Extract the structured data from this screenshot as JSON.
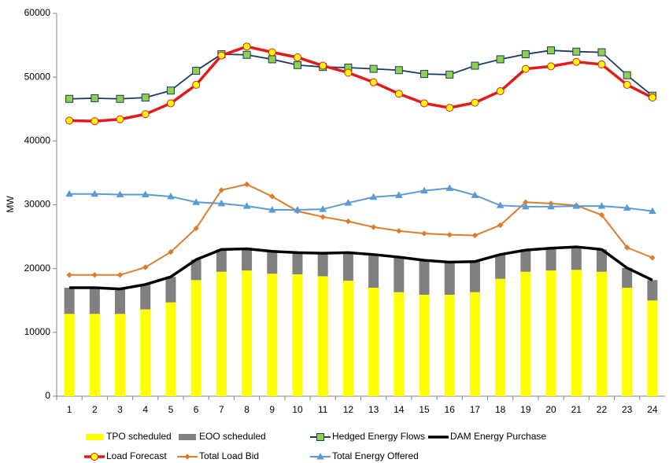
{
  "chart_data": {
    "type": "bar",
    "y_label": "MW",
    "categories": [
      "1",
      "2",
      "3",
      "4",
      "5",
      "6",
      "7",
      "8",
      "9",
      "10",
      "11",
      "12",
      "13",
      "14",
      "15",
      "16",
      "17",
      "18",
      "19",
      "20",
      "21",
      "22",
      "23",
      "24"
    ],
    "ylim": [
      0,
      60000
    ],
    "yticks": [
      0,
      10000,
      20000,
      30000,
      40000,
      50000,
      60000
    ],
    "grid": false,
    "series": [
      {
        "name": "TPO scheduled",
        "type": "bar",
        "color": "#ffff00",
        "values": [
          12900,
          12900,
          12900,
          13600,
          14700,
          18200,
          19500,
          19700,
          19200,
          19100,
          18800,
          18100,
          17000,
          16300,
          15900,
          15900,
          16300,
          18400,
          19500,
          19700,
          19800,
          19500,
          17000,
          15000
        ]
      },
      {
        "name": "EOO scheduled",
        "type": "bar",
        "color": "#808080",
        "values": [
          4100,
          4100,
          3900,
          3900,
          4000,
          3200,
          3500,
          3400,
          3500,
          3400,
          3600,
          4400,
          5200,
          5500,
          5400,
          5100,
          4800,
          3800,
          3400,
          3500,
          3600,
          3500,
          3100,
          3200
        ]
      },
      {
        "name": "Hedged Energy Flows",
        "type": "line",
        "color": "#1f3864",
        "marker": "square",
        "marker_color": "#8fd14f",
        "values": [
          46600,
          46700,
          46600,
          46800,
          47900,
          51000,
          53600,
          53500,
          52800,
          51900,
          51600,
          51500,
          51300,
          51100,
          50500,
          50400,
          51800,
          52800,
          53600,
          54200,
          54000,
          53900,
          50300,
          47100
        ]
      },
      {
        "name": "DAM Energy Purchase",
        "type": "line",
        "color": "#000000",
        "marker": "none",
        "values": [
          17000,
          17000,
          16800,
          17500,
          18700,
          21400,
          23000,
          23100,
          22700,
          22500,
          22400,
          22500,
          22200,
          21800,
          21300,
          21000,
          21100,
          22200,
          22900,
          23200,
          23400,
          23000,
          20100,
          18200
        ]
      },
      {
        "name": "Load Forecast",
        "type": "line",
        "color": "#e31a1c",
        "marker": "circle",
        "marker_color": "#ffff00",
        "values": [
          43200,
          43100,
          43400,
          44200,
          45900,
          48800,
          53400,
          54800,
          53900,
          53100,
          51800,
          50700,
          49200,
          47400,
          45900,
          45200,
          46000,
          47800,
          51300,
          51700,
          52400,
          52000,
          48800,
          46800
        ]
      },
      {
        "name": "Total Load Bid",
        "type": "line",
        "color": "#e07b29",
        "marker": "diamond",
        "marker_color": "#e07b29",
        "values": [
          19000,
          19000,
          19000,
          20200,
          22600,
          26300,
          32300,
          33200,
          31300,
          29000,
          28100,
          27400,
          26500,
          25900,
          25500,
          25300,
          25200,
          26800,
          30400,
          30200,
          29900,
          28400,
          23300,
          21700
        ]
      },
      {
        "name": "Total Energy Offered",
        "type": "line",
        "color": "#5b9bd5",
        "marker": "triangle",
        "marker_color": "#5b9bd5",
        "values": [
          31700,
          31700,
          31600,
          31600,
          31300,
          30400,
          30200,
          29800,
          29200,
          29200,
          29300,
          30300,
          31200,
          31500,
          32200,
          32600,
          31500,
          29900,
          29700,
          29700,
          29800,
          29800,
          29500,
          29000
        ]
      }
    ]
  }
}
